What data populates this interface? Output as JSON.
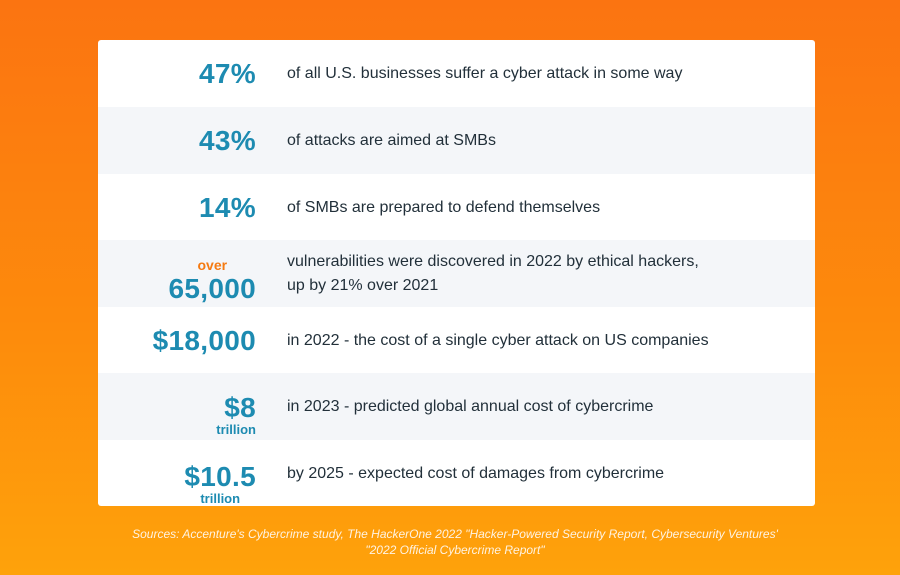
{
  "stats": [
    {
      "prefix": "",
      "value": "47%",
      "unit": "",
      "description": "of all U.S. businesses suffer a cyber attack in some way"
    },
    {
      "prefix": "",
      "value": "43%",
      "unit": "",
      "description": "of attacks are aimed at SMBs"
    },
    {
      "prefix": "",
      "value": "14%",
      "unit": "",
      "description": "of SMBs are prepared to defend themselves"
    },
    {
      "prefix": "over",
      "value": "65,000",
      "unit": "",
      "description": "vulnerabilities were discovered in 2022 by ethical hackers,\nup by 21% over 2021"
    },
    {
      "prefix": "",
      "value": "$18,000",
      "unit": "",
      "description": "in 2022 - the cost of a single cyber attack on US companies"
    },
    {
      "prefix": "",
      "value": "$8",
      "unit": "trillion",
      "description": "in 2023 -  predicted global annual cost of cybercrime"
    },
    {
      "prefix": "",
      "value": "$10.5",
      "unit": "trillion",
      "description": "by 2025 - expected cost of damages from cybercrime"
    }
  ],
  "sources": "Sources:  Accenture's Cybercrime study, The HackerOne 2022 \"Hacker-Powered Security Report, Cybersecurity Ventures' \"2022 Official Cybercrime Report\"",
  "colors": {
    "accent": "#1d8bb1",
    "highlight": "#f57a12",
    "background": "#fb7411"
  }
}
